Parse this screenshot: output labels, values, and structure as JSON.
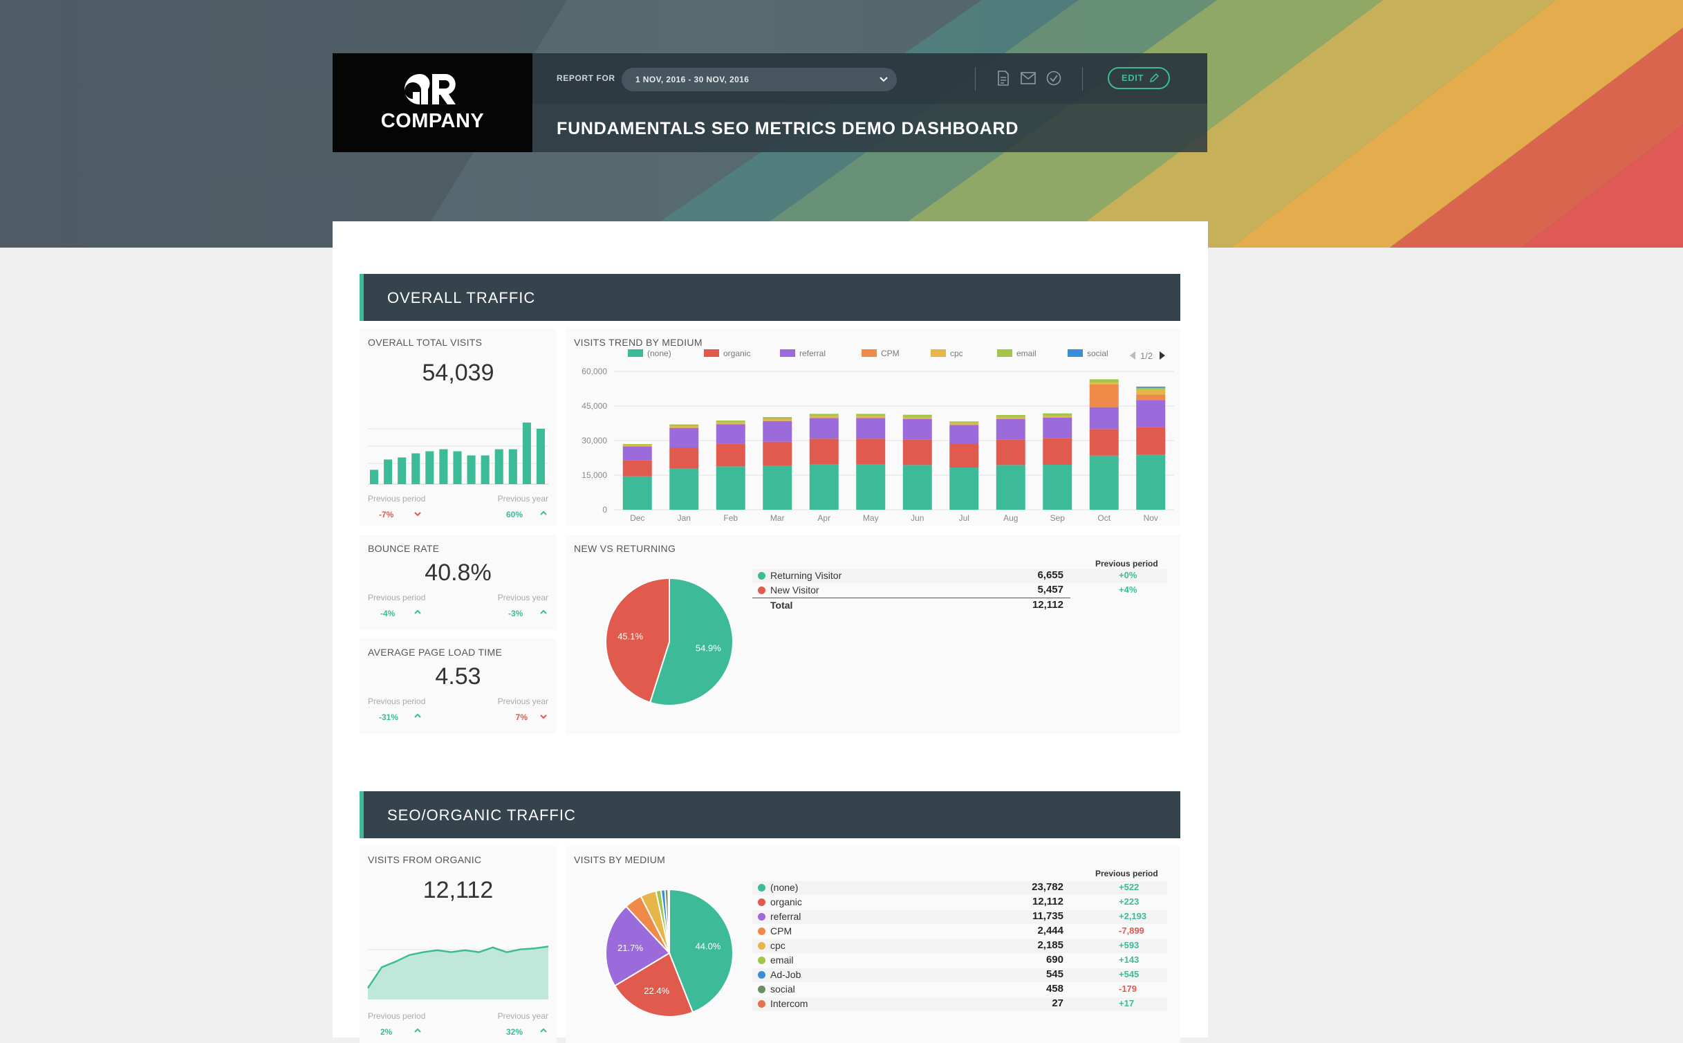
{
  "header": {
    "company": "COMPANY",
    "report_for_label": "REPORT FOR",
    "date_range": "1 NOV, 2016 - 30 NOV, 2016",
    "edit_label": "EDIT",
    "title": "FUNDAMENTALS SEO METRICS DEMO DASHBOARD",
    "icons": [
      "pdf-icon",
      "mail-icon",
      "check-circle-icon",
      "pencil-icon"
    ]
  },
  "colors": {
    "accent": "#3dbb98",
    "red": "#e05a4e",
    "purple": "#9b6bdb",
    "orange": "#ef8a48",
    "yellow": "#e7b64b",
    "lime": "#a4c44c",
    "blue": "#3a8dd8",
    "dark": "#35434c"
  },
  "sections": {
    "overall": {
      "title": "OVERALL TRAFFIC",
      "total_visits": {
        "title": "OVERALL TOTAL VISITS",
        "value": "54,039",
        "prev_period_label": "Previous period",
        "prev_period_value": "-7%",
        "prev_year_label": "Previous year",
        "prev_year_value": "60%"
      },
      "bounce_rate": {
        "title": "BOUNCE RATE",
        "value": "40.8%",
        "prev_period_label": "Previous period",
        "prev_period_value": "-4%",
        "prev_year_label": "Previous year",
        "prev_year_value": "-3%"
      },
      "page_load": {
        "title": "AVERAGE PAGE LOAD TIME",
        "value": "4.53",
        "prev_period_label": "Previous period",
        "prev_period_value": "-31%",
        "prev_year_label": "Previous year",
        "prev_year_value": "7%"
      },
      "trend": {
        "title": "VISITS TREND BY MEDIUM",
        "pager": "1/2"
      },
      "new_vs_returning": {
        "title": "NEW VS RETURNING",
        "prev_head": "Previous period",
        "rows": [
          {
            "label": "Returning Visitor",
            "value": "6,655",
            "delta": "+0%"
          },
          {
            "label": "New Visitor",
            "value": "5,457",
            "delta": "+4%"
          }
        ],
        "total_label": "Total",
        "total_value": "12,112"
      }
    },
    "seo": {
      "title": "SEO/ORGANIC TRAFFIC",
      "organic": {
        "title": "VISITS FROM ORGANIC",
        "value": "12,112",
        "prev_period_label": "Previous period",
        "prev_period_value": "2%",
        "prev_year_label": "Previous year",
        "prev_year_value": "32%"
      },
      "by_medium": {
        "title": "VISITS BY MEDIUM",
        "prev_head": "Previous period",
        "rows": [
          {
            "label": "(none)",
            "value": "23,782",
            "delta": "+522"
          },
          {
            "label": "organic",
            "value": "12,112",
            "delta": "+223"
          },
          {
            "label": "referral",
            "value": "11,735",
            "delta": "+2,193"
          },
          {
            "label": "CPM",
            "value": "2,444",
            "delta": "-7,899"
          },
          {
            "label": "cpc",
            "value": "2,185",
            "delta": "+593"
          },
          {
            "label": "email",
            "value": "690",
            "delta": "+143"
          },
          {
            "label": "Ad-Job",
            "value": "545",
            "delta": "+545"
          },
          {
            "label": "social",
            "value": "458",
            "delta": "-179"
          },
          {
            "label": "Intercom",
            "value": "27",
            "delta": "+17"
          }
        ]
      }
    }
  },
  "chart_data": [
    {
      "type": "bar",
      "title": "OVERALL TOTAL VISITS",
      "values": [
        7,
        12,
        13,
        15,
        16,
        17,
        16,
        14,
        14,
        17,
        17,
        30,
        27
      ]
    },
    {
      "type": "bar",
      "stacked": true,
      "title": "VISITS TREND BY MEDIUM",
      "categories": [
        "Dec",
        "Jan",
        "Feb",
        "Mar",
        "Apr",
        "May",
        "Jun",
        "Jul",
        "Aug",
        "Sep",
        "Oct",
        "Nov"
      ],
      "yticks": [
        "0",
        "15,000",
        "30,000",
        "45,000",
        "60,000"
      ],
      "ylim": [
        0,
        60000
      ],
      "legend_position": "top",
      "series": [
        {
          "name": "(none)",
          "color": "#3dbb98",
          "values": [
            14500,
            18000,
            18800,
            19000,
            19800,
            19800,
            19400,
            18300,
            19400,
            19500,
            23500,
            23800
          ]
        },
        {
          "name": "organic",
          "color": "#e05a4e",
          "values": [
            7000,
            9000,
            9800,
            10500,
            11000,
            11000,
            11000,
            10500,
            11000,
            11500,
            11500,
            12100
          ]
        },
        {
          "name": "referral",
          "color": "#9b6bdb",
          "values": [
            6000,
            8500,
            8500,
            9000,
            9000,
            9000,
            9000,
            8000,
            9000,
            9000,
            9500,
            11700
          ]
        },
        {
          "name": "CPM",
          "color": "#ef8a48",
          "values": [
            0,
            0,
            0,
            0,
            0,
            0,
            0,
            0,
            0,
            0,
            9800,
            2400
          ]
        },
        {
          "name": "cpc",
          "color": "#e7b64b",
          "values": [
            500,
            800,
            800,
            800,
            800,
            800,
            800,
            800,
            800,
            800,
            800,
            2200
          ]
        },
        {
          "name": "email",
          "color": "#a4c44c",
          "values": [
            500,
            700,
            800,
            900,
            1000,
            1000,
            1000,
            700,
            900,
            1000,
            1500,
            700
          ]
        },
        {
          "name": "social",
          "color": "#3a8dd8",
          "values": [
            0,
            0,
            0,
            0,
            0,
            0,
            0,
            0,
            0,
            0,
            0,
            500
          ]
        }
      ]
    },
    {
      "type": "pie",
      "title": "NEW VS RETURNING",
      "slices": [
        {
          "name": "Returning Visitor",
          "value": 54.9,
          "label": "54.9%",
          "color": "#3dbb98"
        },
        {
          "name": "New Visitor",
          "value": 45.1,
          "label": "45.1%",
          "color": "#e05a4e"
        }
      ]
    },
    {
      "type": "area",
      "title": "VISITS FROM ORGANIC",
      "values": [
        12,
        34,
        40,
        47,
        50,
        52,
        50,
        52,
        50,
        55,
        50,
        53,
        54,
        56
      ]
    },
    {
      "type": "pie",
      "title": "VISITS BY MEDIUM",
      "slices": [
        {
          "name": "(none)",
          "value": 44.0,
          "label": "44.0%",
          "color": "#3dbb98"
        },
        {
          "name": "organic",
          "value": 22.4,
          "label": "22.4%",
          "color": "#e05a4e"
        },
        {
          "name": "referral",
          "value": 21.7,
          "label": "21.7%",
          "color": "#9b6bdb"
        },
        {
          "name": "CPM",
          "value": 4.5,
          "label": "",
          "color": "#ef8a48"
        },
        {
          "name": "cpc",
          "value": 4.0,
          "label": "",
          "color": "#e7b64b"
        },
        {
          "name": "email",
          "value": 1.3,
          "label": "",
          "color": "#a4c44c"
        },
        {
          "name": "Ad-Job",
          "value": 1.0,
          "label": "",
          "color": "#3a8dd8"
        },
        {
          "name": "social",
          "value": 0.8,
          "label": "",
          "color": "#6b8e63"
        },
        {
          "name": "Intercom",
          "value": 0.3,
          "label": "",
          "color": "#e87050"
        }
      ]
    }
  ]
}
